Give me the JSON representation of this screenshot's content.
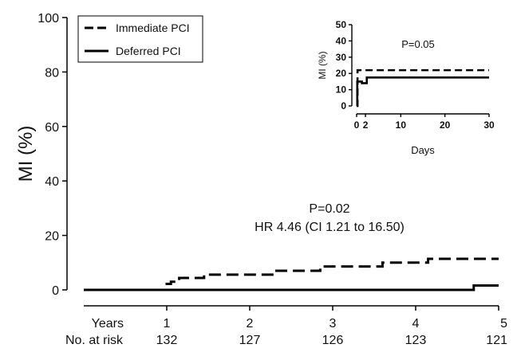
{
  "chart_data": [
    {
      "type": "line",
      "step": true,
      "title": "",
      "xlabel": "",
      "ylabel": "MI (%)",
      "ylim": [
        0,
        100
      ],
      "xlim": [
        0,
        5
      ],
      "yticks": [
        0,
        20,
        40,
        60,
        80,
        100
      ],
      "xticks": [
        1,
        2,
        3,
        4,
        5
      ],
      "legend_position": "top-left",
      "grid": false,
      "annotations": [
        "P=0.02",
        "HR 4.46 (CI 1.21 to 16.50)"
      ],
      "series": [
        {
          "name": "Immediate PCI",
          "style": "dashed",
          "color": "#000000",
          "x": [
            0,
            1.0,
            1.05,
            1.15,
            1.45,
            2.3,
            2.85,
            3.6,
            4.15,
            5.0
          ],
          "y": [
            0,
            2.2,
            3.0,
            4.4,
            5.6,
            7.0,
            8.6,
            10.0,
            11.4,
            11.4
          ]
        },
        {
          "name": "Deferred PCI",
          "style": "solid",
          "color": "#000000",
          "x": [
            0,
            4.7,
            5.0
          ],
          "y": [
            0,
            1.6,
            1.6
          ]
        }
      ],
      "risk_table": {
        "row_labels": [
          "Years",
          "No. at risk"
        ],
        "years": [
          "1",
          "2",
          "3",
          "4",
          "5"
        ],
        "at_risk": [
          "132",
          "127",
          "126",
          "123",
          "121"
        ]
      }
    },
    {
      "type": "line",
      "step": true,
      "title": "",
      "xlabel": "Days",
      "ylabel": "MI (%)",
      "ylim": [
        0,
        50
      ],
      "xlim": [
        0,
        30
      ],
      "yticks": [
        0,
        10,
        20,
        30,
        40,
        50
      ],
      "xticks": [
        0,
        2,
        10,
        20,
        30
      ],
      "grid": false,
      "annotations": [
        "P=0.05"
      ],
      "series": [
        {
          "name": "Immediate PCI",
          "style": "dashed",
          "color": "#000000",
          "x": [
            0,
            0.2,
            30
          ],
          "y": [
            0,
            22,
            22
          ]
        },
        {
          "name": "Deferred PCI",
          "style": "solid",
          "color": "#000000",
          "x": [
            0,
            0.15,
            1.2,
            2.3,
            30
          ],
          "y": [
            0,
            15,
            14,
            17.5,
            17.5
          ]
        }
      ]
    }
  ]
}
